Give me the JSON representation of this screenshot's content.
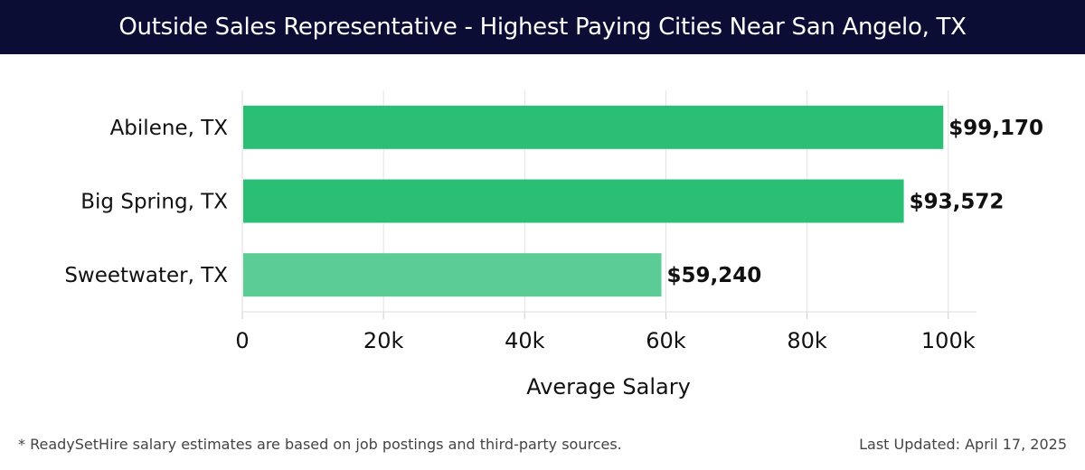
{
  "header": {
    "title": "Outside Sales Representative - Highest Paying Cities Near San Angelo, TX"
  },
  "chart_data": {
    "type": "bar",
    "orientation": "horizontal",
    "title": "Outside Sales Representative - Highest Paying Cities Near San Angelo, TX",
    "categories": [
      "Abilene, TX",
      "Big Spring, TX",
      "Sweetwater, TX"
    ],
    "values": [
      99170,
      93572,
      59240
    ],
    "value_labels": [
      "$99,170",
      "$93,572",
      "$59,240"
    ],
    "xlabel": "Average Salary",
    "ylabel": "",
    "xlim": [
      0,
      104000
    ],
    "xticks": [
      0,
      20000,
      40000,
      60000,
      80000,
      100000
    ],
    "xtick_labels": [
      "0",
      "20k",
      "40k",
      "60k",
      "80k",
      "100k"
    ],
    "grid": true,
    "bar_colors": [
      "#2bbf76",
      "#2bbf76",
      "#5ccc96"
    ]
  },
  "footer": {
    "note": "* ReadySetHire salary estimates are based on job postings and third-party sources.",
    "last_updated": "Last Updated: April 17, 2025"
  }
}
